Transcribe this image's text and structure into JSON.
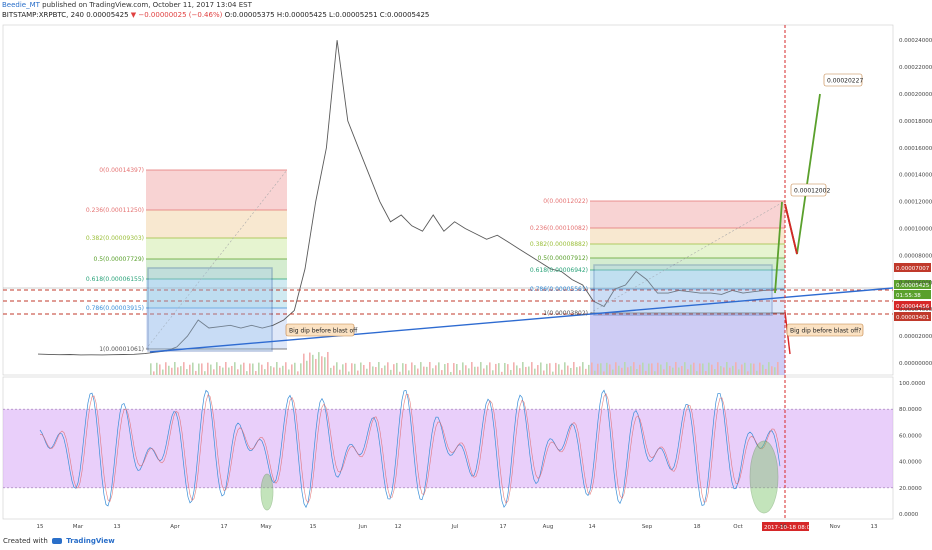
{
  "header": {
    "author": "Beedie_MT",
    "published": "published on TradingView.com, October 11, 2017 13:04 EST",
    "symbol": "BITSTAMP:XRPBTC, 240",
    "last": "0.00005425",
    "change": "▼ −0.00000025 (−0.46%)",
    "ohlc": "O:0.00005375 H:0.00005425 L:0.00005251 C:0.00005425"
  },
  "footer": {
    "created_with": "Created with",
    "brand": "TradingView"
  },
  "colors": {
    "up_candle": "#5a5a5a",
    "box_blue": "#2f5aa8",
    "trendline": "#2e6bd1",
    "dashed_red": "#c0392b",
    "arrow_green": "#5aa02c",
    "arrow_red": "#d62728",
    "stoch_band": "#d7a8f5",
    "stoch_k": "#3a8fd8",
    "stoch_d": "#e06060"
  },
  "chart_data": [
    {
      "type": "line",
      "panel": "price",
      "y_axis": {
        "ticks": [
          "0.00024000",
          "0.00022000",
          "0.00020000",
          "0.00018000",
          "0.00016000",
          "0.00014000",
          "0.00012000",
          "0.00010000",
          "0.00008000",
          "0.00006000",
          "0.00004000",
          "0.00002000",
          "0.00000000"
        ],
        "ylim": [
          0,
          0.00025
        ]
      },
      "x_axis": {
        "ticks": [
          "15",
          "Mar",
          "13",
          "Apr",
          "17",
          "May",
          "15",
          "Jun",
          "12",
          "Jul",
          "17",
          "Aug",
          "14",
          "Sep",
          "18",
          "Oct",
          "16",
          "Nov",
          "13"
        ]
      },
      "series": [
        {
          "values": [
            6.6e-06,
            6.4e-06,
            6.2e-06,
            6.3e-06,
            6e-06,
            6.1e-06,
            6e-06,
            6.2e-06,
            6.3e-06,
            6.5e-06,
            7e-06,
            8e-06,
            9e-06,
            1.2e-05,
            2e-05,
            3.2e-05,
            2.6e-05,
            2.7e-05,
            2.8e-05,
            2.6e-05,
            2.8e-05,
            2.6e-05,
            2.8e-05,
            3.2e-05,
            3.9e-05,
            7e-05,
            0.00012,
            0.00016,
            0.00024,
            0.00018,
            0.00016,
            0.00014,
            0.00012,
            0.000105,
            0.00011,
            0.000102,
            9.8e-05,
            0.00011,
            9.8e-05,
            0.000105,
            0.0001,
            9.6e-05,
            9.2e-05,
            9.5e-05,
            9e-05,
            8.5e-05,
            8e-05,
            7.5e-05,
            7e-05,
            6.8e-05,
            6.2e-05,
            5.8e-05,
            4.6e-05,
            4.2e-05,
            5.5e-05,
            5.8e-05,
            6.8e-05,
            6.2e-05,
            5.2e-05,
            5.2e-05,
            5.4e-05,
            5.3e-05,
            5.2e-05,
            5.2e-05,
            5.1e-05,
            5.4e-05,
            5.2e-05,
            5.3e-05,
            5.4e-05,
            5.42e-05
          ]
        }
      ],
      "fib_left": {
        "levels": [
          {
            "label": "0(0.00014397)",
            "color": "#e57373"
          },
          {
            "label": "0.236(0.00011250)",
            "color": "#e57373"
          },
          {
            "label": "0.382(0.00009303)",
            "color": "#9bbf3a"
          },
          {
            "label": "0.5(0.00007729)",
            "color": "#5aa02c"
          },
          {
            "label": "0.618(0.00006155)",
            "color": "#2aa37a"
          },
          {
            "label": "0.786(0.00003915)",
            "color": "#3a8fd8"
          },
          {
            "label": "1(0.00001061)",
            "color": "#555555"
          }
        ]
      },
      "fib_right": {
        "levels": [
          {
            "label": "0(0.00012022)",
            "color": "#e57373"
          },
          {
            "label": "0.236(0.00010082)",
            "color": "#e57373"
          },
          {
            "label": "0.382(0.00008882)",
            "color": "#9bbf3a"
          },
          {
            "label": "0.5(0.00007912)",
            "color": "#5aa02c"
          },
          {
            "label": "0.618(0.00006942)",
            "color": "#2aa37a"
          },
          {
            "label": "0.786(0.00005561)",
            "color": "#3a8fd8"
          },
          {
            "label": "1(0.00003802)",
            "color": "#555555"
          }
        ]
      },
      "price_tags": [
        {
          "label": "0.00007007",
          "bg": "#c0392b"
        },
        {
          "label": "0.00005425",
          "bg": "#5aa02c"
        },
        {
          "label": "01:55:38",
          "bg": "#5aa02c"
        },
        {
          "label": "0.00004456",
          "bg": "#d62728"
        },
        {
          "label": "0.00003401",
          "bg": "#c0392b"
        }
      ],
      "annotations": [
        {
          "text": "Big dip before blast off"
        },
        {
          "text": "Big dip before blast off?"
        },
        {
          "text": "0.00012002"
        },
        {
          "text": "0.00020227"
        }
      ],
      "date_flag": "2017-10-18 08:00"
    },
    {
      "type": "line",
      "panel": "stochastic",
      "y_axis": {
        "ticks": [
          "100.0000",
          "80.0000",
          "60.0000",
          "40.0000",
          "20.0000",
          "0.0000"
        ],
        "ylim": [
          0,
          100
        ]
      },
      "band": [
        20,
        80
      ]
    }
  ]
}
